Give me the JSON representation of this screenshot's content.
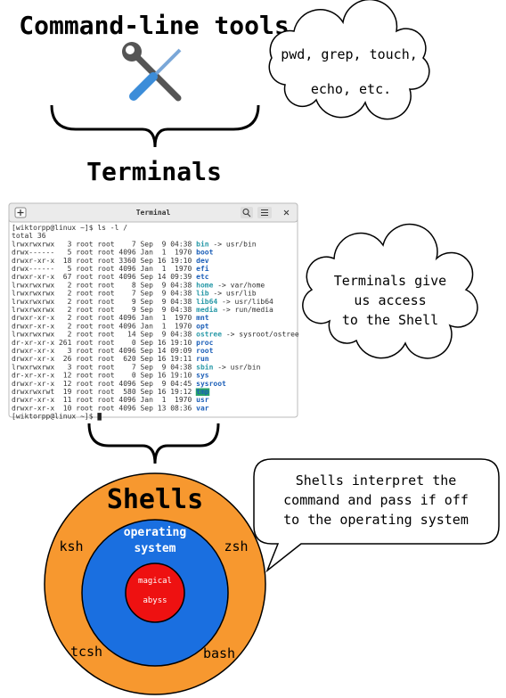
{
  "title": "Command-line tools",
  "tools_cloud": {
    "lines": [
      "pwd, grep, touch,",
      "echo, etc."
    ]
  },
  "terminals_label": "Terminals",
  "terminal": {
    "title": "Terminal",
    "prompt": "[wiktorpp@linux ~]$",
    "command": "ls -l /",
    "total": "total 36",
    "rows": [
      {
        "meta": "lrwxrwxrwx   3 root root    7 Sep  9 04:38",
        "name": "bin",
        "link": "-> usr/bin",
        "color": "#2a9aa8"
      },
      {
        "meta": "drwx------   5 root root 4096 Jan  1  1970",
        "name": "boot",
        "color": "#1c5fb8"
      },
      {
        "meta": "drwxr-xr-x  18 root root 3360 Sep 16 19:10",
        "name": "dev",
        "color": "#1c5fb8"
      },
      {
        "meta": "drwx------   5 root root 4096 Jan  1  1970",
        "name": "efi",
        "color": "#1c5fb8"
      },
      {
        "meta": "drwxr-xr-x  67 root root 4096 Sep 14 09:39",
        "name": "etc",
        "color": "#1c5fb8"
      },
      {
        "meta": "lrwxrwxrwx   2 root root    8 Sep  9 04:38",
        "name": "home",
        "link": "-> var/home",
        "color": "#2a9aa8"
      },
      {
        "meta": "lrwxrwxrwx   2 root root    7 Sep  9 04:38",
        "name": "lib",
        "link": "-> usr/lib",
        "color": "#2a9aa8"
      },
      {
        "meta": "lrwxrwxrwx   2 root root    9 Sep  9 04:38",
        "name": "lib64",
        "link": "-> usr/lib64",
        "color": "#2a9aa8"
      },
      {
        "meta": "lrwxrwxrwx   2 root root    9 Sep  9 04:38",
        "name": "media",
        "link": "-> run/media",
        "color": "#2a9aa8"
      },
      {
        "meta": "drwxr-xr-x   2 root root 4096 Jan  1  1970",
        "name": "mnt",
        "color": "#1c5fb8"
      },
      {
        "meta": "drwxr-xr-x   2 root root 4096 Jan  1  1970",
        "name": "opt",
        "color": "#1c5fb8"
      },
      {
        "meta": "lrwxrwxrwx   2 root root   14 Sep  9 04:38",
        "name": "ostree",
        "link": "-> sysroot/ostree",
        "color": "#2a9aa8"
      },
      {
        "meta": "dr-xr-xr-x 261 root root    0 Sep 16 19:10",
        "name": "proc",
        "color": "#1c5fb8"
      },
      {
        "meta": "drwxr-xr-x   3 root root 4096 Sep 14 09:09",
        "name": "root",
        "color": "#1c5fb8"
      },
      {
        "meta": "drwxr-xr-x  26 root root  620 Sep 16 19:11",
        "name": "run",
        "color": "#1c5fb8"
      },
      {
        "meta": "lrwxrwxrwx   3 root root    7 Sep  9 04:38",
        "name": "sbin",
        "link": "-> usr/bin",
        "color": "#2a9aa8"
      },
      {
        "meta": "dr-xr-xr-x  12 root root    0 Sep 16 19:10",
        "name": "sys",
        "color": "#1c5fb8"
      },
      {
        "meta": "drwxr-xr-x  12 root root 4096 Sep  9 04:45",
        "name": "sysroot",
        "color": "#1c5fb8"
      },
      {
        "meta": "drwxrwxrwt  19 root root  580 Sep 16 19:12",
        "name": "tmp",
        "color": "#1c5fb8",
        "background": "#26a269"
      },
      {
        "meta": "drwxr-xr-x  11 root root 4096 Jan  1  1970",
        "name": "usr",
        "color": "#1c5fb8"
      },
      {
        "meta": "drwxr-xr-x  10 root root 4096 Sep 13 08:36",
        "name": "var",
        "color": "#1c5fb8"
      }
    ]
  },
  "terminal_cloud": {
    "lines": [
      "Terminals give",
      "us access",
      "to the Shell"
    ]
  },
  "shells": {
    "title": "Shells",
    "names": [
      "ksh",
      "zsh",
      "tcsh",
      "bash"
    ],
    "os": [
      "operating",
      "system"
    ],
    "core": [
      "magical",
      "abyss"
    ]
  },
  "shell_bubble": {
    "lines": [
      "Shells interpret the",
      "command and pass if off",
      "to the operating system"
    ]
  }
}
